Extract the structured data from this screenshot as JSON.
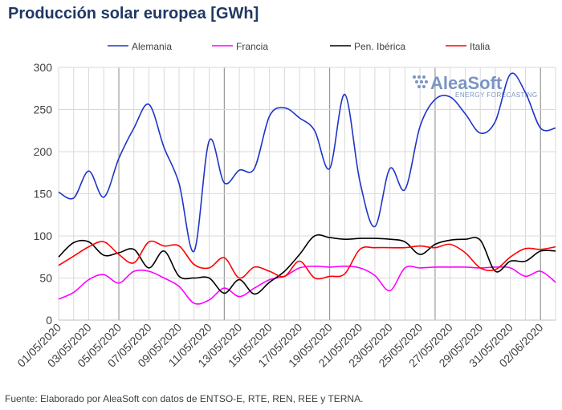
{
  "chart_data": {
    "type": "line",
    "title": "Producción solar europea [GWh]",
    "ylim": [
      0,
      300
    ],
    "yticks": [
      0,
      50,
      100,
      150,
      200,
      250,
      300
    ],
    "x": [
      "01/05/2020",
      "02/05/2020",
      "03/05/2020",
      "04/05/2020",
      "05/05/2020",
      "06/05/2020",
      "07/05/2020",
      "08/05/2020",
      "09/05/2020",
      "10/05/2020",
      "11/05/2020",
      "12/05/2020",
      "13/05/2020",
      "14/05/2020",
      "15/05/2020",
      "16/05/2020",
      "17/05/2020",
      "18/05/2020",
      "19/05/2020",
      "20/05/2020",
      "21/05/2020",
      "22/05/2020",
      "23/05/2020",
      "24/05/2020",
      "25/05/2020",
      "26/05/2020",
      "27/05/2020",
      "28/05/2020",
      "29/05/2020",
      "30/05/2020",
      "31/05/2020",
      "01/06/2020",
      "02/06/2020",
      "03/06/2020"
    ],
    "xticklabels": [
      "01/05/2020",
      "03/05/2020",
      "05/05/2020",
      "07/05/2020",
      "09/05/2020",
      "11/05/2020",
      "13/05/2020",
      "15/05/2020",
      "17/05/2020",
      "19/05/2020",
      "21/05/2020",
      "23/05/2020",
      "25/05/2020",
      "27/05/2020",
      "29/05/2020",
      "31/05/2020",
      "02/06/2020"
    ],
    "series": [
      {
        "name": "Alemania",
        "color": "#1f34c8",
        "values": [
          152,
          145,
          177,
          146,
          192,
          228,
          256,
          205,
          162,
          82,
          213,
          163,
          178,
          180,
          242,
          252,
          240,
          225,
          180,
          268,
          165,
          111,
          180,
          155,
          230,
          262,
          265,
          245,
          222,
          236,
          292,
          270,
          228,
          228
        ]
      },
      {
        "name": "Francia",
        "color": "#ff00ff",
        "values": [
          25,
          33,
          48,
          54,
          44,
          58,
          58,
          50,
          40,
          20,
          24,
          38,
          28,
          38,
          48,
          52,
          62,
          64,
          63,
          64,
          62,
          53,
          35,
          62,
          62,
          63,
          63,
          63,
          62,
          63,
          62,
          52,
          58,
          45
        ]
      },
      {
        "name": "Pen. Ibérica",
        "color": "#000000",
        "values": [
          75,
          92,
          93,
          77,
          80,
          84,
          62,
          82,
          52,
          50,
          50,
          32,
          48,
          31,
          45,
          58,
          78,
          100,
          98,
          96,
          97,
          97,
          96,
          93,
          78,
          90,
          95,
          96,
          95,
          58,
          70,
          70,
          82,
          82
        ]
      },
      {
        "name": "Italia",
        "color": "#ff0000",
        "values": [
          65,
          76,
          87,
          93,
          78,
          68,
          93,
          88,
          88,
          66,
          62,
          74,
          50,
          63,
          58,
          52,
          70,
          50,
          52,
          55,
          84,
          86,
          86,
          86,
          88,
          86,
          90,
          80,
          62,
          60,
          75,
          85,
          84,
          87
        ]
      }
    ],
    "legend": "top"
  },
  "source": "Fuente: Elaborado por AleaSoft con datos de ENTSO-E, RTE, REN, REE y TERNA.",
  "logo": {
    "main": "AleaSoft",
    "sub": "ENERGY FORECASTING"
  }
}
